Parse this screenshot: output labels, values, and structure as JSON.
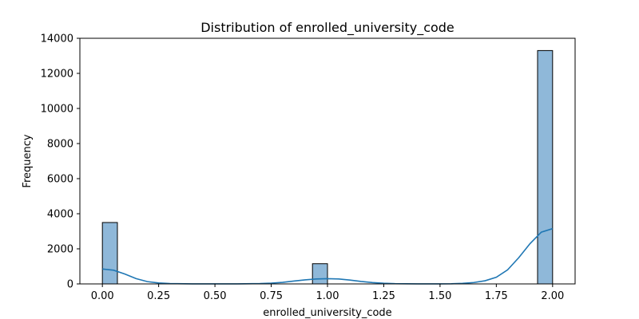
{
  "chart_data": {
    "type": "bar",
    "title": "Distribution of enrolled_university_code",
    "xlabel": "enrolled_university_code",
    "ylabel": "Frequency",
    "xlim": [
      -0.1,
      2.1
    ],
    "ylim": [
      0,
      14000
    ],
    "xticks": [
      0.0,
      0.25,
      0.5,
      0.75,
      1.0,
      1.25,
      1.5,
      1.75,
      2.0
    ],
    "xtick_labels": [
      "0.00",
      "0.25",
      "0.50",
      "0.75",
      "1.00",
      "1.25",
      "1.50",
      "1.75",
      "2.00"
    ],
    "yticks": [
      0,
      2000,
      4000,
      6000,
      8000,
      10000,
      12000,
      14000
    ],
    "ytick_labels": [
      "0",
      "2000",
      "4000",
      "6000",
      "8000",
      "10000",
      "12000",
      "14000"
    ],
    "bin_width": 0.0667,
    "bars": [
      {
        "x_start": 0.0,
        "value": 3500
      },
      {
        "x_start": 0.9333,
        "value": 1150
      },
      {
        "x_start": 1.9333,
        "value": 13300
      }
    ],
    "kde": {
      "x": [
        0.0,
        0.05,
        0.1,
        0.15,
        0.2,
        0.25,
        0.3,
        0.4,
        0.5,
        0.6,
        0.7,
        0.75,
        0.8,
        0.85,
        0.9,
        0.95,
        1.0,
        1.05,
        1.1,
        1.15,
        1.2,
        1.25,
        1.3,
        1.4,
        1.5,
        1.55,
        1.6,
        1.65,
        1.7,
        1.75,
        1.8,
        1.85,
        1.9,
        1.95,
        2.0
      ],
      "y": [
        850,
        780,
        560,
        300,
        130,
        55,
        20,
        5,
        3,
        5,
        20,
        45,
        90,
        160,
        230,
        280,
        300,
        280,
        220,
        140,
        75,
        35,
        15,
        5,
        5,
        10,
        30,
        80,
        180,
        380,
        800,
        1500,
        2300,
        2950,
        3150
      ]
    },
    "colors": {
      "bar_fill": "#8fb8d9",
      "bar_edge": "#000000",
      "kde_line": "#1f77b4"
    },
    "grid": false,
    "legend": "none"
  }
}
